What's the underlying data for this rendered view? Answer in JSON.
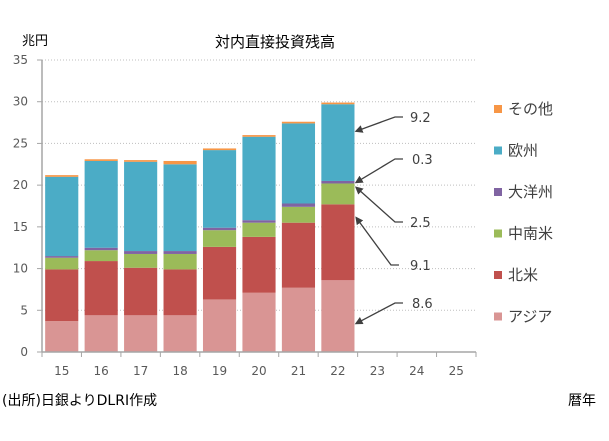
{
  "chart_data": {
    "type": "bar",
    "stacked": true,
    "title": "対内直接投資残高",
    "ylabel": "兆円",
    "xlabel": "暦年",
    "source_note": "(出所)日銀よりDLRI作成",
    "ylim": [
      0,
      35
    ],
    "yticks": [
      0,
      5,
      10,
      15,
      20,
      25,
      30,
      35
    ],
    "grid": true,
    "legend_position": "right",
    "categories": [
      "15",
      "16",
      "17",
      "18",
      "19",
      "20",
      "21",
      "22",
      "23",
      "24",
      "25"
    ],
    "series": [
      {
        "name": "アジア",
        "color": "#D99594",
        "values": [
          3.7,
          4.4,
          4.4,
          4.4,
          6.3,
          7.1,
          7.7,
          8.6,
          null,
          null,
          null
        ]
      },
      {
        "name": "北米",
        "color": "#C0504D",
        "values": [
          6.2,
          6.5,
          5.7,
          5.5,
          6.3,
          6.7,
          7.8,
          9.1,
          null,
          null,
          null
        ]
      },
      {
        "name": "中南米",
        "color": "#9BBB59",
        "values": [
          1.4,
          1.3,
          1.65,
          1.85,
          2.0,
          1.7,
          1.9,
          2.5,
          null,
          null,
          null
        ]
      },
      {
        "name": "大洋州",
        "color": "#8064A2",
        "values": [
          0.2,
          0.3,
          0.35,
          0.35,
          0.3,
          0.3,
          0.4,
          0.3,
          null,
          null,
          null
        ]
      },
      {
        "name": "欧州",
        "color": "#4BACC6",
        "values": [
          9.5,
          10.4,
          10.7,
          10.4,
          9.3,
          10.0,
          9.6,
          9.2,
          null,
          null,
          null
        ]
      },
      {
        "name": "その他",
        "color": "#F79646",
        "values": [
          0.2,
          0.2,
          0.2,
          0.4,
          0.2,
          0.2,
          0.2,
          0.2,
          null,
          null,
          null
        ]
      }
    ],
    "annotations": [
      {
        "text": "9.2",
        "series": "欧州",
        "category": "22"
      },
      {
        "text": "0.3",
        "series": "大洋州",
        "category": "22"
      },
      {
        "text": "2.5",
        "series": "中南米",
        "category": "22"
      },
      {
        "text": "9.1",
        "series": "北米",
        "category": "22"
      },
      {
        "text": "8.6",
        "series": "アジア",
        "category": "22"
      }
    ],
    "legend_order": [
      "その他",
      "欧州",
      "大洋州",
      "中南米",
      "北米",
      "アジア"
    ]
  }
}
